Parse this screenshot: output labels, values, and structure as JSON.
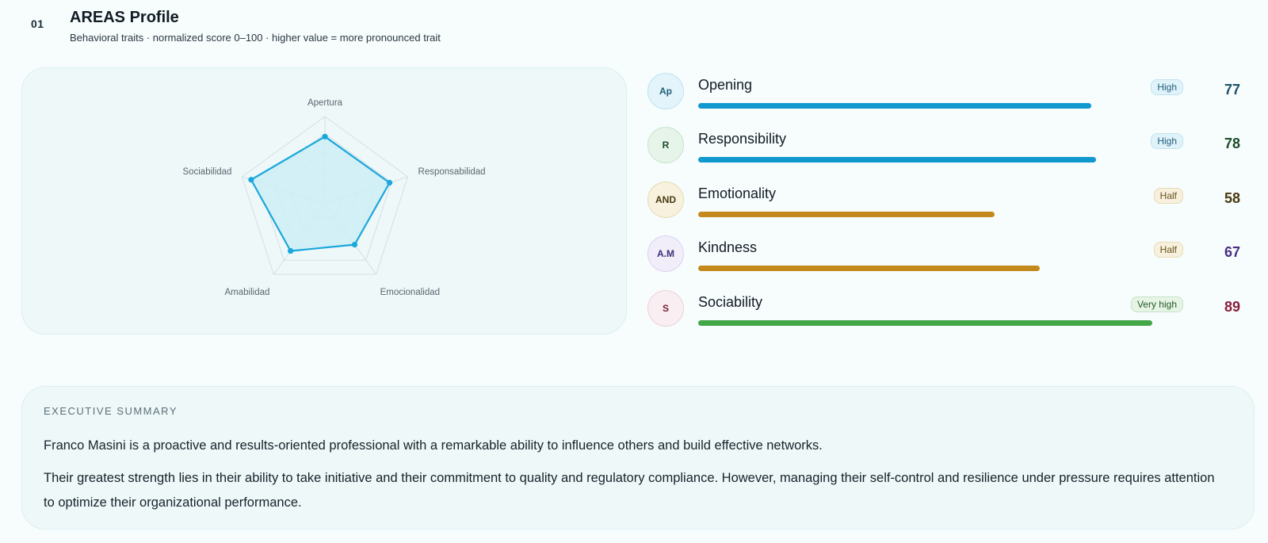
{
  "header": {
    "section_number": "01",
    "title": "AREAS Profile",
    "subtitle": "Behavioral traits · normalized score 0–100 · higher value = more pronounced trait"
  },
  "radar": {
    "axes": [
      "Apertura",
      "Responsabilidad",
      "Emocionalidad",
      "Amabilidad",
      "Sociabilidad"
    ],
    "values": [
      77,
      78,
      58,
      67,
      89
    ],
    "max": 100,
    "grid_levels": 5,
    "fill_color": "#cdeef6",
    "line_color": "#1aa7dc"
  },
  "traits": [
    {
      "abbr": "Ap",
      "name": "Opening",
      "level": "High",
      "score": "77",
      "value": 77,
      "avatar_bg": "#e3f4fa",
      "avatar_border": "#bfe4f1",
      "avatar_text": "#1f5f7a",
      "badge_bg": "#e1f3fa",
      "badge_border": "#bfe3f0",
      "badge_text": "#1f5f7a",
      "score_color": "#1f4f66",
      "bar_color": "#1199cf"
    },
    {
      "abbr": "R",
      "name": "Responsibility",
      "level": "High",
      "score": "78",
      "value": 78,
      "avatar_bg": "#e6f4ea",
      "avatar_border": "#c6e6cf",
      "avatar_text": "#1e4d2b",
      "badge_bg": "#e1f3fa",
      "badge_border": "#bfe3f0",
      "badge_text": "#1f5f7a",
      "score_color": "#1e4d2b",
      "bar_color": "#1199cf"
    },
    {
      "abbr": "AND",
      "name": "Emotionality",
      "level": "Half",
      "score": "58",
      "value": 58,
      "avatar_bg": "#f7f1de",
      "avatar_border": "#e8dcb4",
      "avatar_text": "#4a3a10",
      "badge_bg": "#f7f0dd",
      "badge_border": "#e8dcb6",
      "badge_text": "#6a5420",
      "score_color": "#4a3a10",
      "bar_color": "#c4891c"
    },
    {
      "abbr": "A.M",
      "name": "Kindness",
      "level": "Half",
      "score": "67",
      "value": 67,
      "avatar_bg": "#f1eefa",
      "avatar_border": "#dcd4f0",
      "avatar_text": "#3c2f7a",
      "badge_bg": "#f7f0dd",
      "badge_border": "#e8dcb6",
      "badge_text": "#6a5420",
      "score_color": "#4a2f86",
      "bar_color": "#c4891c"
    },
    {
      "abbr": "S",
      "name": "Sociability",
      "level": "Very high",
      "score": "89",
      "value": 89,
      "avatar_bg": "#f9eef1",
      "avatar_border": "#edd3da",
      "avatar_text": "#7a1f35",
      "badge_bg": "#e6f4e6",
      "badge_border": "#c6e3c6",
      "badge_text": "#245a24",
      "score_color": "#8a1f3a",
      "bar_color": "#43a647"
    }
  ],
  "summary": {
    "heading": "EXECUTIVE SUMMARY",
    "paragraph1": "Franco Masini is a proactive and results-oriented professional with a remarkable ability to influence others and build effective networks.",
    "paragraph2": "Their greatest strength lies in their ability to take initiative and their commitment to quality and regulatory compliance. However, managing their self-control and resilience under pressure requires attention to optimize their organizational performance."
  }
}
